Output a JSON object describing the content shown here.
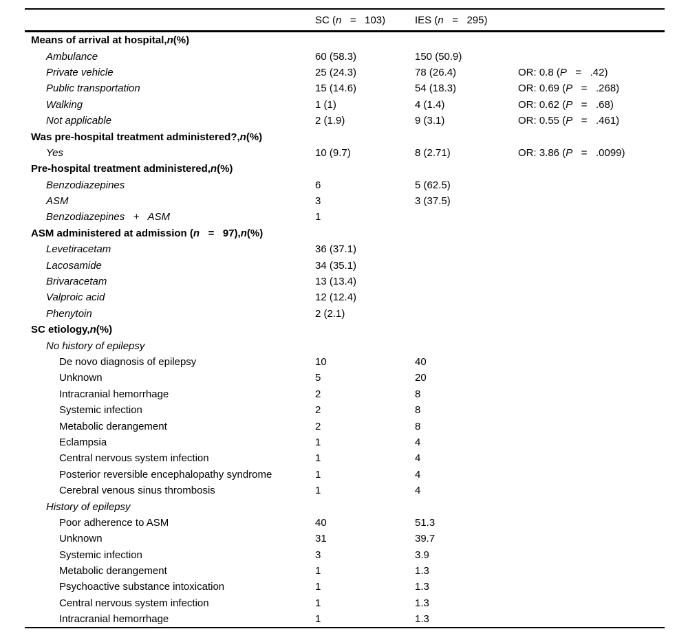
{
  "page": {
    "background_color": "#ffffff",
    "text_color": "#000000",
    "rule_color": "#000000"
  },
  "table": {
    "header": {
      "sc": "SC (*n*   =   103)",
      "ies": "IES (*n*   =   295)"
    },
    "rows": [
      {
        "style": "section",
        "label": "Means of arrival at hospital,*n*(%)",
        "sc": "",
        "ies": "",
        "or": ""
      },
      {
        "style": "item",
        "label": "Ambulance",
        "sc": "60 (58.3)",
        "ies": "150 (50.9)",
        "or": ""
      },
      {
        "style": "item",
        "label": "Private vehicle",
        "sc": "25 (24.3)",
        "ies": "78 (26.4)",
        "or": "OR: 0.8 (*P*   =   .42)"
      },
      {
        "style": "item",
        "label": "Public transportation",
        "sc": "15 (14.6)",
        "ies": "54 (18.3)",
        "or": "OR: 0.69 (*P*   =   .268)"
      },
      {
        "style": "item",
        "label": "Walking",
        "sc": "1 (1)",
        "ies": "4 (1.4)",
        "or": "OR: 0.62 (*P*   =   .68)"
      },
      {
        "style": "item",
        "label": "Not applicable",
        "sc": "2 (1.9)",
        "ies": "9 (3.1)",
        "or": "OR: 0.55 (*P*   =   .461)"
      },
      {
        "style": "section",
        "label": "Was pre-hospital treatment administered?,*n*(%)",
        "sc": "",
        "ies": "",
        "or": ""
      },
      {
        "style": "item",
        "label": "Yes",
        "sc": "10 (9.7)",
        "ies": "8 (2.71)",
        "or": "OR: 3.86 (*P*   =   .0099)"
      },
      {
        "style": "section",
        "label": "Pre-hospital treatment administered,*n*(%)",
        "sc": "",
        "ies": "",
        "or": ""
      },
      {
        "style": "item",
        "label": "Benzodiazepines",
        "sc": "6",
        "ies": "5 (62.5)",
        "or": ""
      },
      {
        "style": "item",
        "label": "ASM",
        "sc": "3",
        "ies": "3 (37.5)",
        "or": ""
      },
      {
        "style": "item",
        "label": "Benzodiazepines   +   ASM",
        "sc": "1",
        "ies": "",
        "or": ""
      },
      {
        "style": "section",
        "label": "ASM administered at admission (*n*   =   97),*n*(%)",
        "sc": "",
        "ies": "",
        "or": ""
      },
      {
        "style": "item",
        "label": "Levetiracetam",
        "sc": "36 (37.1)",
        "ies": "",
        "or": ""
      },
      {
        "style": "item",
        "label": "Lacosamide",
        "sc": "34 (35.1)",
        "ies": "",
        "or": ""
      },
      {
        "style": "item",
        "label": "Brivaracetam",
        "sc": "13 (13.4)",
        "ies": "",
        "or": ""
      },
      {
        "style": "item",
        "label": "Valproic acid",
        "sc": "12 (12.4)",
        "ies": "",
        "or": ""
      },
      {
        "style": "item",
        "label": "Phenytoin",
        "sc": "2 (2.1)",
        "ies": "",
        "or": ""
      },
      {
        "style": "section",
        "label": "SC etiology,*n*(%)",
        "sc": "",
        "ies": "",
        "or": ""
      },
      {
        "style": "subhead",
        "label": "No history of epilepsy",
        "sc": "",
        "ies": "",
        "or": ""
      },
      {
        "style": "item2",
        "label": "De novo diagnosis of epilepsy",
        "sc": "10",
        "ies": "40",
        "or": ""
      },
      {
        "style": "item2",
        "label": "Unknown",
        "sc": "5",
        "ies": "20",
        "or": ""
      },
      {
        "style": "item2",
        "label": "Intracranial hemorrhage",
        "sc": "2",
        "ies": "8",
        "or": ""
      },
      {
        "style": "item2",
        "label": "Systemic infection",
        "sc": "2",
        "ies": "8",
        "or": ""
      },
      {
        "style": "item2",
        "label": "Metabolic derangement",
        "sc": "2",
        "ies": "8",
        "or": ""
      },
      {
        "style": "item2",
        "label": "Eclampsia",
        "sc": "1",
        "ies": "4",
        "or": ""
      },
      {
        "style": "item2",
        "label": "Central nervous system infection",
        "sc": "1",
        "ies": "4",
        "or": ""
      },
      {
        "style": "item2",
        "label": "Posterior reversible encephalopathy syndrome",
        "sc": "1",
        "ies": "4",
        "or": ""
      },
      {
        "style": "item2",
        "label": "Cerebral venous sinus thrombosis",
        "sc": "1",
        "ies": "4",
        "or": ""
      },
      {
        "style": "subhead",
        "label": "History of epilepsy",
        "sc": "",
        "ies": "",
        "or": ""
      },
      {
        "style": "item2",
        "label": "Poor adherence to ASM",
        "sc": "40",
        "ies": "51.3",
        "or": ""
      },
      {
        "style": "item2",
        "label": "Unknown",
        "sc": "31",
        "ies": "39.7",
        "or": ""
      },
      {
        "style": "item2",
        "label": "Systemic infection",
        "sc": "3",
        "ies": "3.9",
        "or": ""
      },
      {
        "style": "item2",
        "label": "Metabolic derangement",
        "sc": "1",
        "ies": "1.3",
        "or": ""
      },
      {
        "style": "item2",
        "label": "Psychoactive substance intoxication",
        "sc": "1",
        "ies": "1.3",
        "or": ""
      },
      {
        "style": "item2",
        "label": "Central nervous system infection",
        "sc": "1",
        "ies": "1.3",
        "or": ""
      },
      {
        "style": "item2",
        "label": "Intracranial hemorrhage",
        "sc": "1",
        "ies": "1.3",
        "or": ""
      }
    ]
  }
}
